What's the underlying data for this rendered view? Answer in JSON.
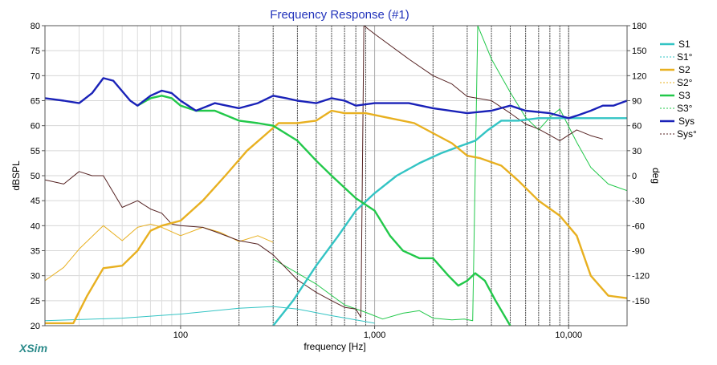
{
  "app": {
    "brand": "XSim"
  },
  "chart_data": {
    "type": "line",
    "title": "Frequency Response (#1)",
    "xlabel": "frequency [Hz]",
    "ylabel": "dBSPL",
    "y2label": "deg",
    "xscale": "log",
    "xlim": [
      20,
      20000
    ],
    "ylim": [
      20,
      80
    ],
    "y2lim": [
      -180,
      180
    ],
    "grid": true,
    "legend_position": "right",
    "xticks": [
      {
        "value": 100,
        "label": "100"
      },
      {
        "value": 1000,
        "label": "1,000"
      },
      {
        "value": 10000,
        "label": "10,000"
      }
    ],
    "yticks": [
      20,
      25,
      30,
      35,
      40,
      45,
      50,
      55,
      60,
      65,
      70,
      75,
      80
    ],
    "y2ticks": [
      {
        "value": 180,
        "label": "180"
      },
      {
        "value": 150,
        "label": "150"
      },
      {
        "value": 120,
        "label": "120"
      },
      {
        "value": 90,
        "label": "90"
      },
      {
        "value": 60,
        "label": "60"
      },
      {
        "value": 30,
        "label": "30"
      },
      {
        "value": 0,
        "label": "0"
      },
      {
        "value": -30,
        "label": "-30"
      },
      {
        "value": -60,
        "label": "-60"
      },
      {
        "value": -90,
        "label": "-90"
      },
      {
        "value": -120,
        "label": "-120"
      },
      {
        "value": -150,
        "label": "-150"
      }
    ],
    "series": [
      {
        "name": "S1",
        "color": "#33c4c4",
        "style": "solid",
        "axis": "left",
        "points": [
          [
            300,
            20
          ],
          [
            380,
            25
          ],
          [
            500,
            32
          ],
          [
            650,
            38
          ],
          [
            800,
            43
          ],
          [
            1000,
            46.5
          ],
          [
            1300,
            50
          ],
          [
            1700,
            52.5
          ],
          [
            2200,
            54.5
          ],
          [
            2800,
            56
          ],
          [
            3300,
            57
          ],
          [
            3800,
            59
          ],
          [
            4500,
            61
          ],
          [
            5500,
            61
          ],
          [
            7000,
            61.5
          ],
          [
            8500,
            61.5
          ],
          [
            10000,
            61.5
          ],
          [
            20000,
            61.5
          ]
        ]
      },
      {
        "name": "S1°",
        "color": "#33c4c4",
        "style": "dashed",
        "axis": "right",
        "points": [
          [
            20,
            -174
          ],
          [
            50,
            -171
          ],
          [
            100,
            -166
          ],
          [
            200,
            -159
          ],
          [
            300,
            -157
          ],
          [
            400,
            -160
          ],
          [
            600,
            -168
          ],
          [
            800,
            -173
          ],
          [
            1000,
            -177
          ]
        ]
      },
      {
        "name": "S2",
        "color": "#e8b020",
        "style": "solid",
        "axis": "left",
        "points": [
          [
            20,
            20.5
          ],
          [
            28,
            20.5
          ],
          [
            33,
            26
          ],
          [
            40,
            31.5
          ],
          [
            50,
            32
          ],
          [
            60,
            35
          ],
          [
            70,
            39
          ],
          [
            80,
            40
          ],
          [
            100,
            41
          ],
          [
            130,
            45
          ],
          [
            170,
            50
          ],
          [
            220,
            55
          ],
          [
            270,
            58
          ],
          [
            320,
            60.5
          ],
          [
            400,
            60.5
          ],
          [
            500,
            61
          ],
          [
            600,
            63
          ],
          [
            700,
            62.5
          ],
          [
            900,
            62.5
          ],
          [
            1200,
            61.5
          ],
          [
            1600,
            60.5
          ],
          [
            2000,
            58.5
          ],
          [
            2500,
            56.5
          ],
          [
            3000,
            54
          ],
          [
            3500,
            53.5
          ],
          [
            4500,
            52
          ],
          [
            5500,
            49
          ],
          [
            7000,
            45
          ],
          [
            9000,
            42
          ],
          [
            11000,
            38
          ],
          [
            13000,
            30
          ],
          [
            16000,
            26
          ],
          [
            20000,
            25.5
          ]
        ]
      },
      {
        "name": "S2°",
        "color": "#e8b020",
        "style": "dashed",
        "axis": "right",
        "points": [
          [
            20,
            -126
          ],
          [
            25,
            -110
          ],
          [
            30,
            -88
          ],
          [
            40,
            -60
          ],
          [
            50,
            -78
          ],
          [
            60,
            -62
          ],
          [
            70,
            -58
          ],
          [
            80,
            -62
          ],
          [
            100,
            -72
          ],
          [
            130,
            -62
          ],
          [
            160,
            -68
          ],
          [
            200,
            -79
          ],
          [
            250,
            -72
          ],
          [
            300,
            -80
          ]
        ]
      },
      {
        "name": "S3",
        "color": "#22c84a",
        "style": "solid",
        "axis": "left",
        "points": [
          [
            60,
            64
          ],
          [
            70,
            65.5
          ],
          [
            80,
            66
          ],
          [
            90,
            65.5
          ],
          [
            100,
            64
          ],
          [
            120,
            63
          ],
          [
            150,
            63
          ],
          [
            200,
            61
          ],
          [
            250,
            60.5
          ],
          [
            300,
            60
          ],
          [
            400,
            57
          ],
          [
            500,
            53
          ],
          [
            600,
            50
          ],
          [
            800,
            45.5
          ],
          [
            1000,
            43
          ],
          [
            1200,
            38
          ],
          [
            1400,
            35
          ],
          [
            1700,
            33.5
          ],
          [
            2000,
            33.5
          ],
          [
            2400,
            30
          ],
          [
            2700,
            28
          ],
          [
            3000,
            29
          ],
          [
            3300,
            30.5
          ],
          [
            3700,
            29
          ],
          [
            4200,
            25
          ],
          [
            5000,
            20
          ]
        ]
      },
      {
        "name": "S3°",
        "color": "#22c84a",
        "style": "dashed",
        "axis": "right",
        "points": [
          [
            300,
            -100
          ],
          [
            500,
            -130
          ],
          [
            700,
            -155
          ],
          [
            900,
            -164
          ],
          [
            1100,
            -172
          ],
          [
            1400,
            -165
          ],
          [
            1700,
            -162
          ],
          [
            2000,
            -171
          ],
          [
            2500,
            -173
          ],
          [
            2900,
            -172
          ],
          [
            3200,
            -174
          ],
          [
            3400,
            180
          ],
          [
            4000,
            140
          ],
          [
            5000,
            100
          ],
          [
            6000,
            70
          ],
          [
            7000,
            55
          ],
          [
            8000,
            70
          ],
          [
            9000,
            80
          ],
          [
            11000,
            40
          ],
          [
            13000,
            10
          ],
          [
            16000,
            -10
          ],
          [
            20000,
            -18
          ]
        ]
      },
      {
        "name": "Sys",
        "color": "#1a22b8",
        "style": "solid",
        "axis": "left",
        "points": [
          [
            20,
            65.5
          ],
          [
            25,
            65
          ],
          [
            30,
            64.5
          ],
          [
            35,
            66.5
          ],
          [
            40,
            69.5
          ],
          [
            45,
            69
          ],
          [
            55,
            65
          ],
          [
            60,
            64
          ],
          [
            70,
            66
          ],
          [
            80,
            67
          ],
          [
            90,
            66.5
          ],
          [
            100,
            65
          ],
          [
            120,
            63
          ],
          [
            150,
            64.5
          ],
          [
            200,
            63.5
          ],
          [
            250,
            64.5
          ],
          [
            300,
            66
          ],
          [
            350,
            65.5
          ],
          [
            400,
            65
          ],
          [
            500,
            64.5
          ],
          [
            600,
            65.5
          ],
          [
            700,
            65
          ],
          [
            800,
            64
          ],
          [
            1000,
            64.5
          ],
          [
            1500,
            64.5
          ],
          [
            2000,
            63.5
          ],
          [
            3000,
            62.5
          ],
          [
            4000,
            63
          ],
          [
            5000,
            64
          ],
          [
            6000,
            63
          ],
          [
            8000,
            62.5
          ],
          [
            10000,
            61.5
          ],
          [
            11000,
            62
          ],
          [
            13000,
            63
          ],
          [
            15000,
            64
          ],
          [
            17000,
            64
          ],
          [
            20000,
            65
          ]
        ]
      },
      {
        "name": "Sys°",
        "color": "#552222",
        "style": "dashed",
        "axis": "right",
        "points": [
          [
            20,
            -5
          ],
          [
            25,
            -10
          ],
          [
            30,
            5
          ],
          [
            35,
            0
          ],
          [
            40,
            0
          ],
          [
            50,
            -38
          ],
          [
            60,
            -30
          ],
          [
            70,
            -40
          ],
          [
            80,
            -45
          ],
          [
            90,
            -58
          ],
          [
            100,
            -60
          ],
          [
            130,
            -62
          ],
          [
            150,
            -67
          ],
          [
            200,
            -78
          ],
          [
            250,
            -82
          ],
          [
            300,
            -95
          ],
          [
            400,
            -125
          ],
          [
            500,
            -140
          ],
          [
            600,
            -150
          ],
          [
            700,
            -158
          ],
          [
            800,
            -160
          ],
          [
            850,
            -170
          ],
          [
            880,
            180
          ],
          [
            1000,
            170
          ],
          [
            1500,
            140
          ],
          [
            2000,
            120
          ],
          [
            2500,
            110
          ],
          [
            3000,
            95
          ],
          [
            4000,
            90
          ],
          [
            5000,
            75
          ],
          [
            6000,
            62
          ],
          [
            7000,
            56
          ],
          [
            9000,
            42
          ],
          [
            11000,
            55
          ],
          [
            13000,
            48
          ],
          [
            15000,
            44
          ]
        ]
      }
    ],
    "vlines": [
      200,
      300,
      400,
      500,
      600,
      700,
      800,
      900,
      2000,
      3000,
      4000,
      5000,
      6000,
      7000,
      8000,
      9000,
      10000
    ]
  }
}
